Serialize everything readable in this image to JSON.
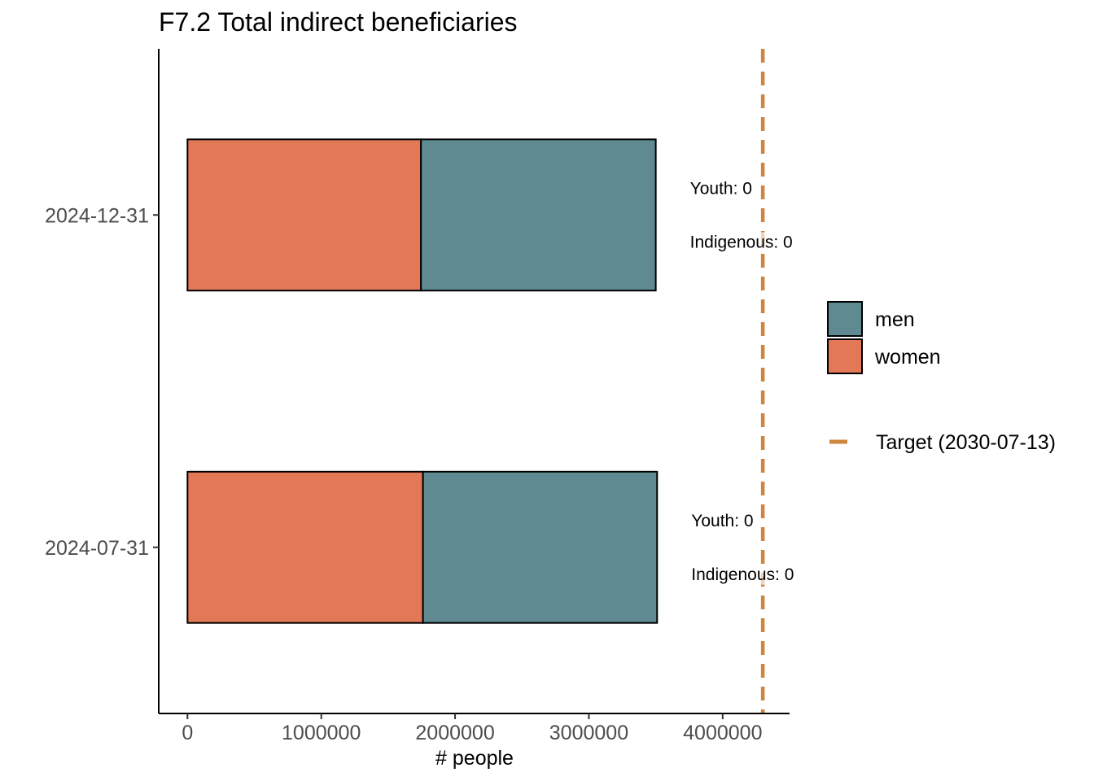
{
  "chart_data": {
    "type": "bar",
    "orientation": "horizontal",
    "stacked": true,
    "title": "F7.2 Total indirect beneficiaries",
    "xlabel": "# people",
    "ylabel": "",
    "categories": [
      "2024-07-31",
      "2024-12-31"
    ],
    "series": [
      {
        "name": "women",
        "color": "#e27855",
        "values": [
          1760000,
          1745000
        ]
      },
      {
        "name": "men",
        "color": "#5f8a91",
        "values": [
          1750000,
          1755000
        ]
      }
    ],
    "xlim": [
      -215000,
      4500000
    ],
    "xticks": [
      0,
      1000000,
      2000000,
      3000000,
      4000000
    ],
    "xtick_labels": [
      "0",
      "1000000",
      "2000000",
      "3000000",
      "4000000"
    ],
    "target": {
      "value": 4300000,
      "label": "Target (2030-07-13)",
      "color": "#cd853f",
      "style": "dashed"
    },
    "annotations": [
      {
        "category": "2024-07-31",
        "lines": [
          "Youth: 0",
          "Indigenous: 0"
        ]
      },
      {
        "category": "2024-12-31",
        "lines": [
          "Youth: 0",
          "Indigenous: 0"
        ]
      }
    ],
    "legend_position": "right",
    "grid": false
  }
}
